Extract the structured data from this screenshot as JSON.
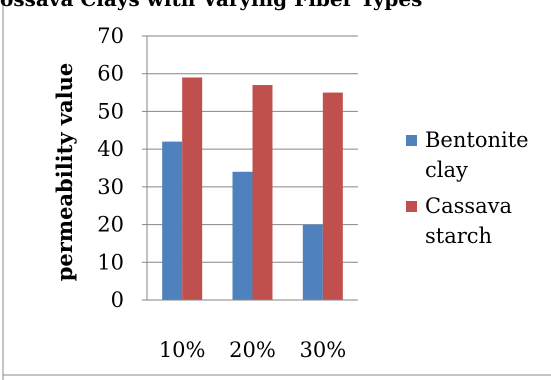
{
  "chart_data": {
    "type": "bar",
    "title": "ossava Clays with Varying Fiber Types",
    "ylabel": "permeability value",
    "xlabel": "",
    "categories": [
      "10%",
      "20%",
      "30%"
    ],
    "ylim": [
      0,
      70
    ],
    "yticks": [
      0,
      10,
      20,
      30,
      40,
      50,
      60,
      70
    ],
    "grid": true,
    "legend_position": "right",
    "series": [
      {
        "name": "Bentonite clay",
        "legend_lines": [
          "Bentonite",
          "clay"
        ],
        "values": [
          42,
          34,
          20
        ],
        "color": "#4f81bd"
      },
      {
        "name": "Cassava starch",
        "legend_lines": [
          "Cassava",
          "starch"
        ],
        "values": [
          59,
          57,
          55
        ],
        "color": "#c0504d"
      }
    ]
  }
}
